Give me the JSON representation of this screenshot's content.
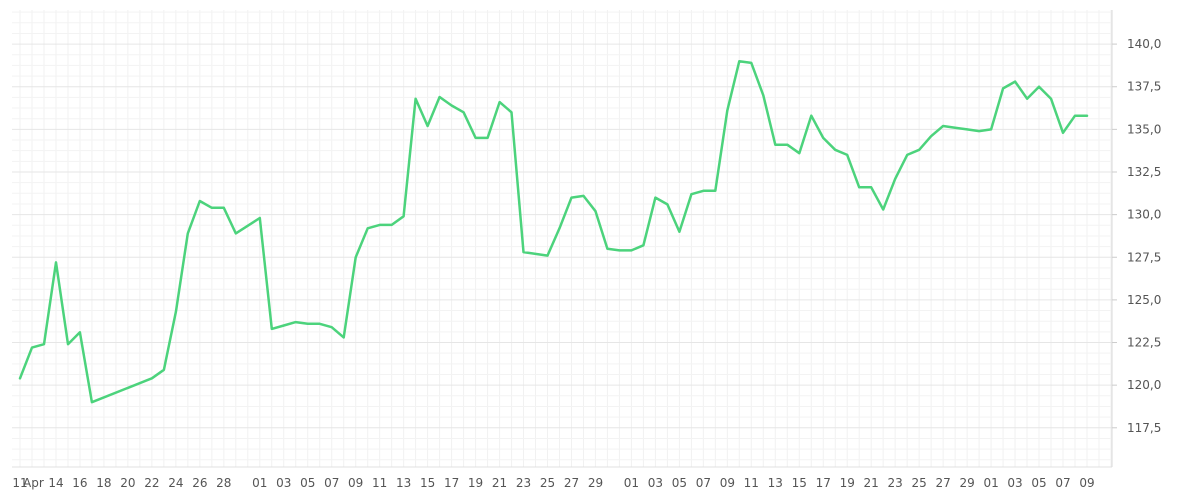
{
  "chart_data": {
    "type": "line",
    "title": "",
    "xlabel": "",
    "ylabel": "",
    "grid": true,
    "legend": "none",
    "x": [
      "2024-04-11",
      "2024-04-12",
      "2024-04-13",
      "2024-04-14",
      "2024-04-15",
      "2024-04-16",
      "2024-04-17",
      "2024-04-22",
      "2024-04-23",
      "2024-04-24",
      "2024-04-25",
      "2024-04-26",
      "2024-04-27",
      "2024-04-28",
      "2024-04-29",
      "2024-05-01",
      "2024-05-02",
      "2024-05-03",
      "2024-05-04",
      "2024-05-05",
      "2024-05-06",
      "2024-05-07",
      "2024-05-08",
      "2024-05-09",
      "2024-05-10",
      "2024-05-11",
      "2024-05-12",
      "2024-05-13",
      "2024-05-14",
      "2024-05-15",
      "2024-05-16",
      "2024-05-17",
      "2024-05-18",
      "2024-05-19",
      "2024-05-20",
      "2024-05-21",
      "2024-05-22",
      "2024-05-23",
      "2024-05-25",
      "2024-05-26",
      "2024-05-27",
      "2024-05-28",
      "2024-05-29",
      "2024-05-30",
      "2024-05-31",
      "2024-06-01",
      "2024-06-02",
      "2024-06-03",
      "2024-06-04",
      "2024-06-05",
      "2024-06-06",
      "2024-06-07",
      "2024-06-08",
      "2024-06-09",
      "2024-06-10",
      "2024-06-11",
      "2024-06-12",
      "2024-06-13",
      "2024-06-14",
      "2024-06-15",
      "2024-06-16",
      "2024-06-17",
      "2024-06-18",
      "2024-06-19",
      "2024-06-20",
      "2024-06-21",
      "2024-06-22",
      "2024-06-23",
      "2024-06-24",
      "2024-06-25",
      "2024-06-26",
      "2024-06-27",
      "2024-06-28",
      "2024-06-29",
      "2024-06-30",
      "2024-07-01",
      "2024-07-02",
      "2024-07-03",
      "2024-07-04",
      "2024-07-05",
      "2024-07-06",
      "2024-07-07",
      "2024-07-08",
      "2024-07-09"
    ],
    "series": [
      {
        "values": [
          120.4,
          122.2,
          122.4,
          127.2,
          122.4,
          123.1,
          119.0,
          120.4,
          120.9,
          124.3,
          128.9,
          130.8,
          130.4,
          130.4,
          128.9,
          129.8,
          123.3,
          123.5,
          123.7,
          123.6,
          123.6,
          123.4,
          122.8,
          127.5,
          129.2,
          129.4,
          129.4,
          129.9,
          136.8,
          135.2,
          136.9,
          136.4,
          136.0,
          134.5,
          134.5,
          136.6,
          136.0,
          127.8,
          127.6,
          129.2,
          131.0,
          131.1,
          130.2,
          128.0,
          127.9,
          127.9,
          128.2,
          131.0,
          130.6,
          129.0,
          131.2,
          131.4,
          131.4,
          136.1,
          139.0,
          138.9,
          137.0,
          134.1,
          134.1,
          133.6,
          135.8,
          134.5,
          133.8,
          133.5,
          131.6,
          131.6,
          130.3,
          132.1,
          133.5,
          133.8,
          134.6,
          135.2,
          135.1,
          135.0,
          134.9,
          135.0,
          137.4,
          137.8,
          136.8,
          137.5,
          136.8,
          134.8,
          135.8,
          135.8
        ],
        "color": "#4cd37c"
      }
    ],
    "ylim": [
      115.2,
      142.0
    ],
    "y_ticks": [
      "117,5",
      "120,0",
      "122,5",
      "125,0",
      "127,5",
      "130,0",
      "132,5",
      "135,0",
      "137,5",
      "140,0"
    ],
    "x_ticks": [
      "11",
      "Apr",
      "14",
      "16",
      "18",
      "20",
      "22",
      "24",
      "26",
      "28",
      "01",
      "03",
      "05",
      "07",
      "09",
      "11",
      "13",
      "15",
      "17",
      "19",
      "21",
      "23",
      "25",
      "27",
      "29",
      "01",
      "03",
      "05",
      "07",
      "09",
      "11",
      "13",
      "15",
      "17",
      "19",
      "21",
      "23",
      "25",
      "27",
      "29",
      "01",
      "03",
      "05",
      "07",
      "09"
    ]
  }
}
